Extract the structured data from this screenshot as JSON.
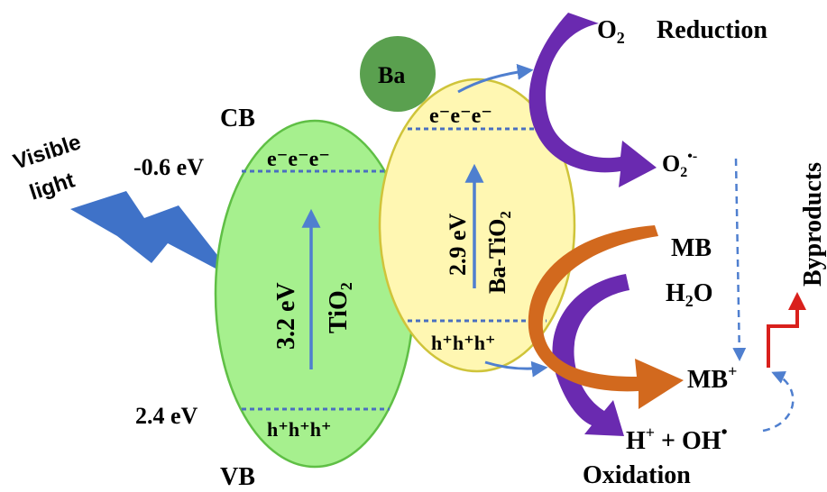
{
  "light": {
    "text_line1": "Visible",
    "text_line2": "light",
    "bolt_color": "#3f72c8"
  },
  "tio2": {
    "cb_label": "CB",
    "vb_label": "VB",
    "cb_energy": "-0.6 eV",
    "vb_energy": "2.4 eV",
    "gap": "3.2 eV",
    "material": "TiO",
    "material_sub": "2",
    "electrons": "e⁻e⁻e⁻",
    "holes": "h⁺h⁺h⁺",
    "fill_color": "#a6f08e",
    "edge_color": "#5fbf45"
  },
  "ba_tio2": {
    "gap": "2.9 eV",
    "material": "Ba-TiO",
    "material_sub": "2",
    "electrons": "e⁻e⁻e⁻",
    "holes": "h⁺h⁺h⁺",
    "fill_color": "#fff7b2",
    "edge_color": "#cfc43a"
  },
  "ba": {
    "label": "Ba",
    "fill_color": "#5aa04f"
  },
  "reduction": {
    "o2": "O",
    "o2_sub": "2",
    "label": "Reduction",
    "superoxide": "O",
    "superoxide_sub": "2",
    "superoxide_sup": "•-"
  },
  "oxidation": {
    "mb": "MB",
    "h2o_a": "H",
    "h2o_sub": "2",
    "h2o_b": "O",
    "mb_plus": "MB",
    "mb_plus_sup": "+",
    "radicals_a": "H",
    "radicals_a_sup": "+",
    "radicals_b": " + OH",
    "radicals_b_sup": "•",
    "label": "Oxidation"
  },
  "byproducts": {
    "label": "Byproducts",
    "arrow_color": "#d9201c"
  },
  "colors": {
    "purple": "#6a2ab0",
    "orange": "#d2691e",
    "arrow_blue": "#4f7fcf",
    "level_line": "#4a6fc0"
  }
}
